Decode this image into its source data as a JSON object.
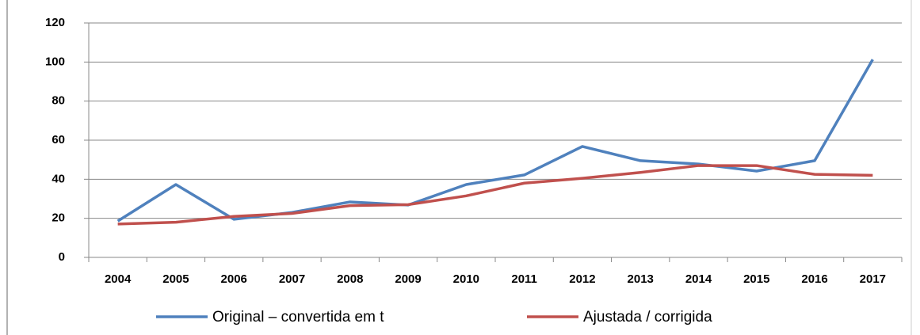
{
  "chart_data": {
    "type": "line",
    "categories": [
      "2004",
      "2005",
      "2006",
      "2007",
      "2008",
      "2009",
      "2010",
      "2011",
      "2012",
      "2013",
      "2014",
      "2015",
      "2016",
      "2017"
    ],
    "series": [
      {
        "name": "Original – convertida em t",
        "color": "#4f81bd",
        "values": [
          18.6,
          37.3,
          19.5,
          23,
          28.4,
          26.8,
          37.3,
          42.2,
          56.8,
          49.5,
          47.8,
          44.2,
          49.5,
          101.3
        ]
      },
      {
        "name": "Ajustada / corrigida",
        "color": "#c0504d",
        "values": [
          17.1,
          18,
          21,
          22.5,
          26.5,
          27,
          31.5,
          38,
          40.5,
          43.5,
          47,
          47,
          42.5,
          42
        ]
      }
    ],
    "ylim": [
      0,
      120
    ],
    "yticks": [
      0,
      20,
      40,
      60,
      80,
      100,
      120
    ],
    "grid": true,
    "legend": "bottom"
  }
}
